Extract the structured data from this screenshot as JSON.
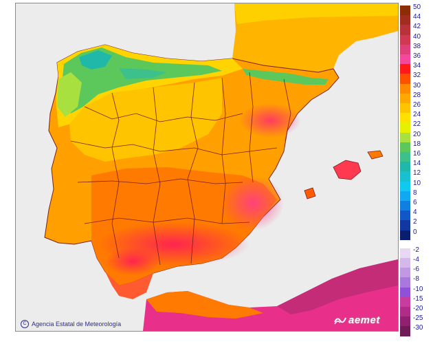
{
  "map": {
    "attribution": "Agencia Estatal de Meteorología",
    "logo_text": "aemet",
    "colors": {
      "sea": "#ececec",
      "coast": "#7a1e1e",
      "borders": "#7a1e1e"
    }
  },
  "legend": {
    "positive": [
      {
        "label": "50",
        "color": "#8c2d04"
      },
      {
        "label": "44",
        "color": "#a02d1e"
      },
      {
        "label": "42",
        "color": "#b8323a"
      },
      {
        "label": "40",
        "color": "#cf3a52"
      },
      {
        "label": "38",
        "color": "#e0407a"
      },
      {
        "label": "36",
        "color": "#f4489a"
      },
      {
        "label": "34",
        "color": "#ff1a1a"
      },
      {
        "label": "32",
        "color": "#ff5000"
      },
      {
        "label": "30",
        "color": "#ff8a00"
      },
      {
        "label": "28",
        "color": "#ffa800"
      },
      {
        "label": "26",
        "color": "#ffc400"
      },
      {
        "label": "24",
        "color": "#ffe000"
      },
      {
        "label": "22",
        "color": "#e6f000"
      },
      {
        "label": "20",
        "color": "#a8e040"
      },
      {
        "label": "18",
        "color": "#5cc85c"
      },
      {
        "label": "16",
        "color": "#3cc08c"
      },
      {
        "label": "14",
        "color": "#20b8a8"
      },
      {
        "label": "12",
        "color": "#18c0d0"
      },
      {
        "label": "10",
        "color": "#10c8f0"
      },
      {
        "label": "8",
        "color": "#10a8f0"
      },
      {
        "label": "6",
        "color": "#1080e0"
      },
      {
        "label": "4",
        "color": "#1058c8"
      },
      {
        "label": "2",
        "color": "#1038a0"
      },
      {
        "label": "0",
        "color": "#0a1e70"
      }
    ],
    "negative": [
      {
        "label": "-2",
        "color": "#e8d8f4"
      },
      {
        "label": "-4",
        "color": "#d4b8ec"
      },
      {
        "label": "-6",
        "color": "#c098e4"
      },
      {
        "label": "-8",
        "color": "#a878dc"
      },
      {
        "label": "-10",
        "color": "#9050d8"
      },
      {
        "label": "-15",
        "color": "#c83ca0"
      },
      {
        "label": "-20",
        "color": "#b02c88"
      },
      {
        "label": "-25",
        "color": "#902070"
      },
      {
        "label": "-30",
        "color": "#701a58"
      }
    ]
  }
}
